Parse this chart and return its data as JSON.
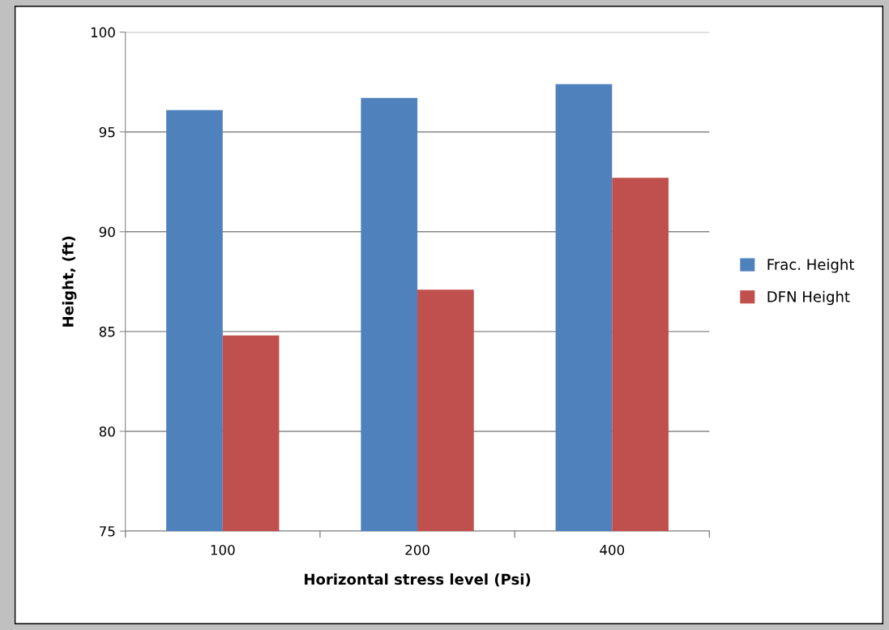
{
  "chart_data": {
    "type": "bar",
    "xlabel": "Horizontal stress level (Psi)",
    "ylabel": "Height, (ft)",
    "categories": [
      "100",
      "200",
      "400"
    ],
    "series": [
      {
        "name": "Frac. Height",
        "color": "#4f81bd",
        "values": [
          96.1,
          96.7,
          97.4
        ]
      },
      {
        "name": "DFN Height",
        "color": "#c0504d",
        "values": [
          84.8,
          87.1,
          92.7
        ]
      }
    ],
    "ylim": [
      75,
      100
    ],
    "yticks": [
      75,
      80,
      85,
      90,
      95,
      100
    ],
    "grid": "y",
    "legend": "right"
  }
}
